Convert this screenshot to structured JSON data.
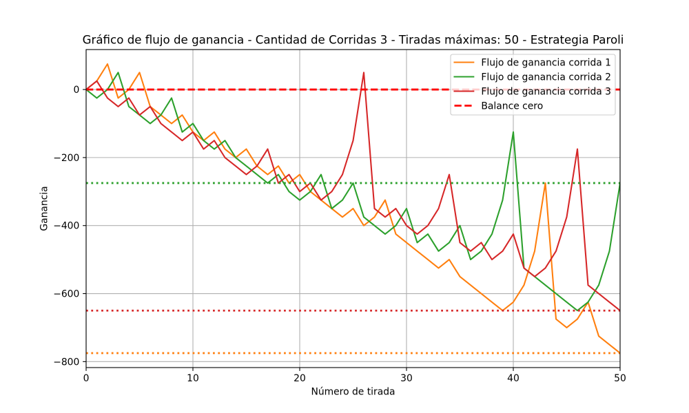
{
  "chart_data": {
    "type": "line",
    "title": "Gráfico de flujo de ganancia - Cantidad de Corridas 3 - Tiradas máximas: 50 - Estrategia Paroli",
    "xlabel": "Número de tirada",
    "ylabel": "Ganancia",
    "xlim": [
      0,
      50
    ],
    "ylim": [
      -817.5,
      117.5
    ],
    "xticks": [
      0,
      10,
      20,
      30,
      40,
      50
    ],
    "xtick_labels": [
      "0",
      "10",
      "20",
      "30",
      "40",
      "50"
    ],
    "yticks": [
      0,
      -200,
      -400,
      -600,
      -800
    ],
    "ytick_labels": [
      "0",
      "−200",
      "−400",
      "−600",
      "−800"
    ],
    "grid": true,
    "legend_position": "top-right",
    "x": [
      0,
      1,
      2,
      3,
      4,
      5,
      6,
      7,
      8,
      9,
      10,
      11,
      12,
      13,
      14,
      15,
      16,
      17,
      18,
      19,
      20,
      21,
      22,
      23,
      24,
      25,
      26,
      27,
      28,
      29,
      30,
      31,
      32,
      33,
      34,
      35,
      36,
      37,
      38,
      39,
      40,
      41,
      42,
      43,
      44,
      45,
      46,
      47,
      48,
      49,
      50
    ],
    "series": [
      {
        "name": "Flujo de ganancia corrida 1",
        "color": "#ff7f0e",
        "style": "solid",
        "values": [
          0,
          25,
          75,
          -25,
          0,
          50,
          -50,
          -75,
          -100,
          -75,
          -125,
          -150,
          -125,
          -175,
          -200,
          -175,
          -225,
          -250,
          -225,
          -275,
          -250,
          -300,
          -325,
          -350,
          -375,
          -350,
          -400,
          -375,
          -325,
          -425,
          -450,
          -475,
          -500,
          -525,
          -500,
          -550,
          -575,
          -600,
          -625,
          -650,
          -625,
          -575,
          -475,
          -275,
          -675,
          -700,
          -675,
          -625,
          -725,
          -750,
          -775
        ]
      },
      {
        "name": "Flujo de ganancia corrida 2",
        "color": "#2ca02c",
        "style": "solid",
        "values": [
          0,
          -25,
          0,
          50,
          -50,
          -75,
          -100,
          -75,
          -25,
          -125,
          -100,
          -150,
          -175,
          -150,
          -200,
          -225,
          -250,
          -275,
          -250,
          -300,
          -325,
          -300,
          -250,
          -350,
          -325,
          -275,
          -375,
          -400,
          -425,
          -400,
          -350,
          -450,
          -425,
          -475,
          -450,
          -400,
          -500,
          -475,
          -425,
          -325,
          -125,
          -525,
          -550,
          -575,
          -600,
          -625,
          -650,
          -625,
          -575,
          -475,
          -275
        ]
      },
      {
        "name": "Flujo de ganancia corrida 3",
        "color": "#d62728",
        "style": "solid",
        "values": [
          0,
          25,
          -25,
          -50,
          -25,
          -75,
          -50,
          -100,
          -125,
          -150,
          -125,
          -175,
          -150,
          -200,
          -225,
          -250,
          -225,
          -175,
          -275,
          -250,
          -300,
          -275,
          -325,
          -300,
          -250,
          -150,
          50,
          -350,
          -375,
          -350,
          -400,
          -425,
          -400,
          -350,
          -250,
          -450,
          -475,
          -450,
          -500,
          -475,
          -425,
          -525,
          -550,
          -525,
          -475,
          -375,
          -175,
          -575,
          -600,
          -625,
          -650
        ]
      }
    ],
    "reference_lines": [
      {
        "name": "Balance cero",
        "value": 0,
        "color": "#ff0000",
        "style": "dashed"
      },
      {
        "value": -275,
        "color": "#2ca02c",
        "style": "dotted"
      },
      {
        "value": -650,
        "color": "#d62728",
        "style": "dotted"
      },
      {
        "value": -775,
        "color": "#ff7f0e",
        "style": "dotted"
      }
    ]
  }
}
